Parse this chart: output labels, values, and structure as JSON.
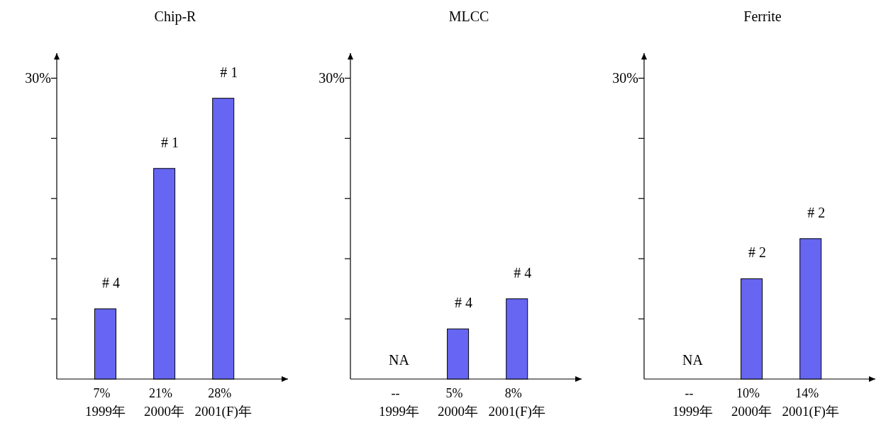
{
  "chart_data": [
    {
      "type": "bar",
      "title": "Chip-R",
      "categories": [
        "1999年",
        "2000年",
        "2001(F)年"
      ],
      "values": [
        7,
        21,
        28
      ],
      "value_labels": [
        "7%",
        "21%",
        "28%"
      ],
      "color": "#6666f2",
      "ylim": [
        0,
        32.5
      ],
      "yticks": [
        {
          "value": 6,
          "label": null
        },
        {
          "value": 12,
          "label": null
        },
        {
          "value": 18,
          "label": null
        },
        {
          "value": 24,
          "label": null
        },
        {
          "value": 30,
          "label": "30%"
        }
      ],
      "annotations": [
        {
          "text": "# 4",
          "x": "1999年",
          "y": 7
        },
        {
          "text": "# 1",
          "x": "2000年",
          "y": 21
        },
        {
          "text": "# 1",
          "x": "2001(F)年",
          "y": 28
        }
      ]
    },
    {
      "type": "bar",
      "title": "MLCC",
      "categories": [
        "1999年",
        "2000年",
        "2001(F)年"
      ],
      "values": [
        null,
        5,
        8
      ],
      "value_labels": [
        "--",
        "5%",
        "8%"
      ],
      "color": "#6666f2",
      "ylim": [
        0,
        32.5
      ],
      "yticks": [
        {
          "value": 6,
          "label": null
        },
        {
          "value": 12,
          "label": null
        },
        {
          "value": 18,
          "label": null
        },
        {
          "value": 24,
          "label": null
        },
        {
          "value": 30,
          "label": "30%"
        }
      ],
      "annotations": [
        "NA",
        {
          "text": "# 4",
          "x": "2000年",
          "y": 5
        },
        {
          "text": "# 4",
          "x": "2001(F)年",
          "y": 8
        }
      ]
    },
    {
      "type": "bar",
      "title": "Ferrite",
      "categories": [
        "1999年",
        "2000年",
        "2001(F)年"
      ],
      "values": [
        null,
        10,
        14
      ],
      "value_labels": [
        "--",
        "10%",
        "14%"
      ],
      "color": "#6666f2",
      "ylim": [
        0,
        32.5
      ],
      "yticks": [
        {
          "value": 6,
          "label": null
        },
        {
          "value": 12,
          "label": null
        },
        {
          "value": 18,
          "label": null
        },
        {
          "value": 24,
          "label": null
        },
        {
          "value": 30,
          "label": "30%"
        }
      ],
      "annotations": [
        "NA",
        {
          "text": "# 2",
          "x": "2000年",
          "y": 10
        },
        {
          "text": "# 2",
          "x": "2001(F)年",
          "y": 14
        }
      ]
    }
  ]
}
